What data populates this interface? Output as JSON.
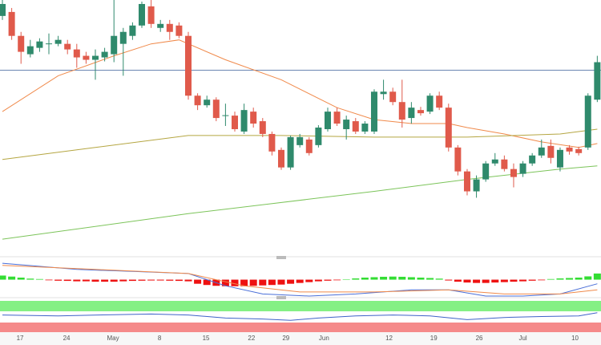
{
  "chart_data": [
    {
      "type": "candlestick",
      "xlim": [
        -0.26,
        64.4
      ],
      "ylim": [
        0,
        320
      ],
      "up_color": "#2f8a6c",
      "down_color": "#e05a4b",
      "x": [
        0,
        1,
        2,
        3,
        4,
        5,
        6,
        7,
        8,
        9,
        10,
        11,
        12,
        13,
        14,
        15,
        16,
        17,
        18,
        19,
        20,
        21,
        22,
        23,
        24,
        25,
        26,
        27,
        28,
        29,
        30,
        31,
        32,
        33,
        34,
        35,
        36,
        37,
        38,
        39,
        40,
        41,
        42,
        43,
        44,
        45,
        46,
        47,
        48,
        49,
        50,
        51,
        52,
        53,
        54,
        55,
        56,
        57,
        58,
        59,
        60,
        61,
        62,
        63,
        64
      ],
      "open": [
        300,
        305,
        275,
        252,
        260,
        265,
        265,
        265,
        258,
        250,
        245,
        248,
        252,
        265,
        275,
        288,
        312,
        285,
        290,
        288,
        275,
        200,
        188,
        195,
        175,
        175,
        155,
        180,
        168,
        152,
        132,
        110,
        138,
        145,
        138,
        158,
        180,
        158,
        168,
        155,
        155,
        202,
        205,
        192,
        172,
        182,
        180,
        200,
        185,
        135,
        105,
        80,
        95,
        115,
        120,
        108,
        102,
        115,
        125,
        137,
        110,
        135,
        133,
        135,
        195
      ],
      "high": [
        320,
        310,
        280,
        270,
        272,
        278,
        275,
        270,
        265,
        255,
        258,
        260,
        320,
        285,
        292,
        318,
        320,
        295,
        295,
        292,
        280,
        203,
        200,
        198,
        190,
        180,
        190,
        185,
        172,
        155,
        135,
        150,
        152,
        148,
        163,
        185,
        185,
        175,
        172,
        168,
        208,
        220,
        210,
        220,
        192,
        186,
        203,
        205,
        190,
        138,
        108,
        100,
        118,
        128,
        125,
        115,
        118,
        128,
        145,
        145,
        135,
        138,
        136,
        203,
        250
      ],
      "low": [
        295,
        270,
        240,
        248,
        255,
        252,
        262,
        252,
        235,
        240,
        220,
        243,
        242,
        225,
        270,
        285,
        285,
        280,
        270,
        272,
        195,
        182,
        185,
        168,
        162,
        155,
        152,
        160,
        148,
        125,
        107,
        107,
        135,
        125,
        135,
        155,
        162,
        145,
        152,
        152,
        152,
        195,
        188,
        160,
        165,
        175,
        177,
        182,
        130,
        100,
        75,
        72,
        92,
        112,
        105,
        85,
        98,
        112,
        122,
        115,
        105,
        126,
        125,
        132,
        192
      ],
      "close": [
        315,
        275,
        255,
        262,
        268,
        265.5,
        270,
        258,
        248,
        245,
        250,
        255,
        275,
        280,
        288,
        315,
        290,
        290,
        280,
        275,
        200,
        188,
        195,
        172,
        175.5,
        158,
        182,
        165,
        152,
        130,
        110,
        148,
        148,
        128,
        160,
        180,
        165,
        170,
        155,
        165,
        205,
        205,
        192,
        170,
        185,
        178,
        200,
        185,
        135,
        105,
        80,
        95,
        115,
        120,
        108,
        98,
        115,
        125,
        135,
        122,
        132,
        130,
        128,
        200,
        242
      ],
      "hline": {
        "value": 232,
        "color": "#6b86b3"
      },
      "series": [
        {
          "color": "#f08a4b",
          "x": [
            0,
            6,
            12,
            16,
            19,
            24,
            30,
            36,
            40,
            44,
            48,
            50,
            54,
            58,
            62,
            64
          ],
          "values": [
            180,
            225,
            250,
            265,
            270,
            245,
            220,
            185,
            170,
            165,
            165,
            160,
            152,
            142,
            135,
            140
          ]
        },
        {
          "color": "#b5a642",
          "x": [
            0,
            10,
            20,
            30,
            40,
            50,
            60,
            64
          ],
          "values": [
            120,
            135,
            150,
            150,
            148,
            148,
            152,
            158
          ]
        },
        {
          "color": "#7cc45a",
          "x": [
            0,
            20,
            40,
            50,
            60,
            64
          ],
          "values": [
            20,
            52,
            80,
            95,
            108,
            112
          ]
        }
      ]
    },
    {
      "type": "macd",
      "xlim": [
        -0.26,
        64.4
      ],
      "ylim": [
        -8,
        10
      ],
      "up_color": "#33dd33",
      "down_color": "#ee1111",
      "x": [
        0,
        1,
        2,
        3,
        4,
        5,
        6,
        7,
        8,
        9,
        10,
        11,
        12,
        13,
        14,
        15,
        16,
        17,
        18,
        19,
        20,
        21,
        22,
        23,
        24,
        25,
        26,
        27,
        28,
        29,
        30,
        31,
        32,
        33,
        34,
        35,
        36,
        37,
        38,
        39,
        40,
        41,
        42,
        43,
        44,
        45,
        46,
        47,
        48,
        49,
        50,
        51,
        52,
        53,
        54,
        55,
        56,
        57,
        58,
        59,
        60,
        61,
        62,
        63,
        64
      ],
      "histogram": [
        2,
        1.5,
        1,
        0.5,
        0.3,
        -0.3,
        -0.5,
        -0.6,
        -0.8,
        -0.8,
        -1,
        -1,
        -1,
        -0.8,
        -0.6,
        -0.5,
        -0.4,
        -0.4,
        -0.5,
        -0.6,
        -0.8,
        -2,
        -2.6,
        -3,
        -3.2,
        -3.2,
        -3.2,
        -3,
        -2.8,
        -2.6,
        -2.4,
        -2,
        -1.6,
        -1.2,
        -0.8,
        -0.5,
        -0.3,
        0.2,
        0.6,
        1,
        1.2,
        1.4,
        1.5,
        1.4,
        1.2,
        1,
        0.8,
        0.5,
        -0.4,
        -1,
        -1.4,
        -1.6,
        -1.6,
        -1.4,
        -1.2,
        -1,
        -0.8,
        -0.5,
        -0.3,
        0.3,
        0.6,
        0.8,
        1,
        1.6,
        3
      ],
      "series": [
        {
          "color": "#4a6fd8",
          "x": [
            0,
            8,
            14,
            20,
            24,
            28,
            33,
            38,
            44,
            48,
            52,
            56,
            60,
            64
          ],
          "values": [
            8,
            5,
            4,
            3,
            -3,
            -7,
            -8,
            -7,
            -5,
            -5,
            -8,
            -8,
            -7,
            -2
          ]
        },
        {
          "color": "#f08a4b",
          "x": [
            0,
            10,
            20,
            26,
            32,
            40,
            48,
            54,
            60,
            64
          ],
          "values": [
            7,
            5,
            3,
            -3,
            -6,
            -6,
            -5,
            -7,
            -7,
            -5
          ]
        }
      ]
    },
    {
      "type": "line",
      "xlim": [
        -0.26,
        64.4
      ],
      "ylim": [
        0,
        100
      ],
      "series": [
        {
          "color": "#3f63c9",
          "x": [
            0,
            6,
            12,
            16,
            20,
            24,
            28,
            31,
            34,
            38,
            42,
            46,
            50,
            54,
            58,
            62,
            64
          ],
          "values": [
            55,
            52,
            56,
            58,
            55,
            45,
            42,
            38,
            45,
            52,
            55,
            52,
            40,
            47,
            50,
            52,
            62
          ]
        }
      ],
      "xticks": [
        {
          "value": 1.9,
          "label": "17"
        },
        {
          "value": 6.9,
          "label": "24"
        },
        {
          "value": 11.9,
          "label": "May"
        },
        {
          "value": 16.9,
          "label": "8"
        },
        {
          "value": 21.9,
          "label": "15"
        },
        {
          "value": 26.8,
          "label": "22"
        },
        {
          "value": 30.5,
          "label": "29"
        },
        {
          "value": 34.6,
          "label": "Jun"
        },
        {
          "value": 41.6,
          "label": "12"
        },
        {
          "value": 46.4,
          "label": "19"
        },
        {
          "value": 51.3,
          "label": "26"
        },
        {
          "value": 56,
          "label": "Jul"
        },
        {
          "value": 61.6,
          "label": "10"
        }
      ]
    }
  ]
}
